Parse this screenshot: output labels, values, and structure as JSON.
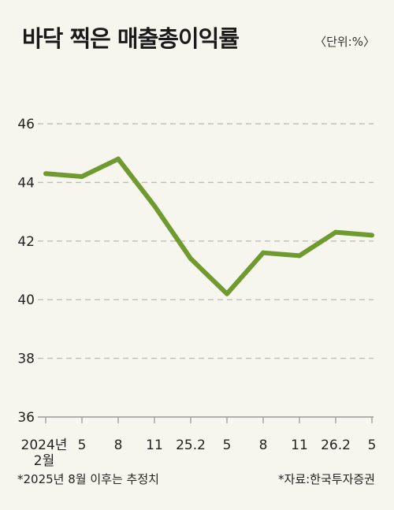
{
  "title": "바닥 찍은 매출총이익률",
  "unit_label": "〈단위:%〉",
  "footnote": "*2025년 8월 이후는 추정치",
  "source": "*자료:한국투자증권",
  "colors": {
    "line": "#6f9a2f",
    "grid": "#bdbdbd",
    "axis": "#9a9a9a",
    "background": "#f7f6ee"
  },
  "chart_data": {
    "type": "line",
    "categories": [
      "2024년 2월",
      "5",
      "8",
      "11",
      "25.2",
      "5",
      "8",
      "11",
      "26.2",
      "5"
    ],
    "tick_labels": [
      [
        "2024년",
        "2월"
      ],
      [
        "5"
      ],
      [
        "8"
      ],
      [
        "11"
      ],
      [
        "25.2"
      ],
      [
        "5"
      ],
      [
        "8"
      ],
      [
        "11"
      ],
      [
        "26.2"
      ],
      [
        "5"
      ]
    ],
    "values": [
      44.3,
      44.2,
      44.8,
      43.2,
      41.4,
      40.2,
      41.6,
      41.5,
      42.3,
      42.2
    ],
    "ylim": [
      36,
      46
    ],
    "yticks": [
      36,
      38,
      40,
      42,
      44,
      46
    ],
    "grid": true
  }
}
